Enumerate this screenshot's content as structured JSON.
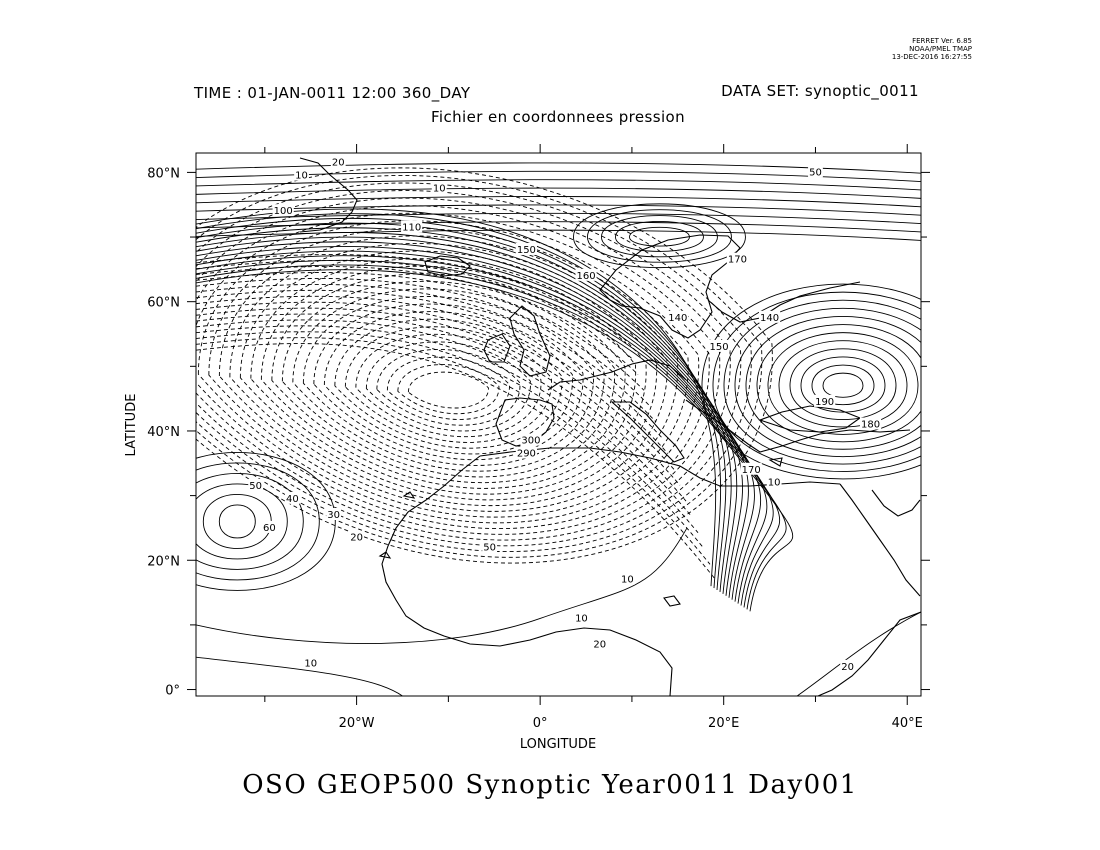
{
  "ferret_stamp": {
    "line1": "FERRET Ver. 6.85",
    "line2": "NOAA/PMEL TMAP",
    "line3": "13-DEC-2016 16:27:55"
  },
  "header": {
    "time": "TIME : 01-JAN-0011 12:00 360_DAY",
    "dataset": "DATA SET: synoptic_0011",
    "subtitle": "Fichier en coordonnees pression"
  },
  "footer_title": "OSO GEOP500 Synoptic Year0011 Day001",
  "axes": {
    "xlabel": "LONGITUDE",
    "ylabel": "LATITUDE",
    "xlim": [
      -37.5,
      41.5
    ],
    "ylim": [
      -1,
      83
    ],
    "xticks": [
      {
        "value": -20,
        "label": "20°W"
      },
      {
        "value": 0,
        "label": "0°"
      },
      {
        "value": 20,
        "label": "20°E"
      },
      {
        "value": 40,
        "label": "40°E"
      }
    ],
    "yticks": [
      {
        "value": 0,
        "label": "0°"
      },
      {
        "value": 20,
        "label": "20°N"
      },
      {
        "value": 40,
        "label": "40°N"
      },
      {
        "value": 60,
        "label": "60°N"
      },
      {
        "value": 80,
        "label": "80°N"
      }
    ]
  },
  "contour_labels": [
    {
      "lon": -22.0,
      "lat": 81.5,
      "text": "20"
    },
    {
      "lon": -26.0,
      "lat": 79.5,
      "text": "10"
    },
    {
      "lon": -11.0,
      "lat": 77.5,
      "text": "10"
    },
    {
      "lon": -28.0,
      "lat": 74.0,
      "text": "100"
    },
    {
      "lon": -14.0,
      "lat": 71.5,
      "text": "110"
    },
    {
      "lon": -1.5,
      "lat": 68.0,
      "text": "150"
    },
    {
      "lon": 5.0,
      "lat": 64.0,
      "text": "160"
    },
    {
      "lon": 21.5,
      "lat": 66.5,
      "text": "170"
    },
    {
      "lon": 15.0,
      "lat": 57.5,
      "text": "140"
    },
    {
      "lon": 25.0,
      "lat": 57.5,
      "text": "140"
    },
    {
      "lon": 19.5,
      "lat": 53.0,
      "text": "150"
    },
    {
      "lon": 31.0,
      "lat": 44.5,
      "text": "190"
    },
    {
      "lon": 36.0,
      "lat": 41.0,
      "text": "180"
    },
    {
      "lon": 23.0,
      "lat": 34.0,
      "text": "170"
    },
    {
      "lon": 25.5,
      "lat": 32.0,
      "text": "10"
    },
    {
      "lon": 30.0,
      "lat": 80.0,
      "text": "50"
    },
    {
      "lon": -1.0,
      "lat": 38.5,
      "text": "300"
    },
    {
      "lon": -1.5,
      "lat": 36.5,
      "text": "290"
    },
    {
      "lon": -5.5,
      "lat": 22.0,
      "text": "50"
    },
    {
      "lon": 9.5,
      "lat": 17.0,
      "text": "10"
    },
    {
      "lon": 4.5,
      "lat": 11.0,
      "text": "10"
    },
    {
      "lon": 6.5,
      "lat": 7.0,
      "text": "20"
    },
    {
      "lon": -25.0,
      "lat": 4.0,
      "text": "10"
    },
    {
      "lon": -31.0,
      "lat": 31.5,
      "text": "50"
    },
    {
      "lon": -27.0,
      "lat": 29.5,
      "text": "40"
    },
    {
      "lon": -22.5,
      "lat": 27.0,
      "text": "30"
    },
    {
      "lon": -29.5,
      "lat": 25.0,
      "text": "60"
    },
    {
      "lon": -20.0,
      "lat": 23.5,
      "text": "20"
    },
    {
      "lon": 33.5,
      "lat": 3.5,
      "text": "20"
    }
  ],
  "style": {
    "line_color": "#000000",
    "background": "#ffffff"
  }
}
